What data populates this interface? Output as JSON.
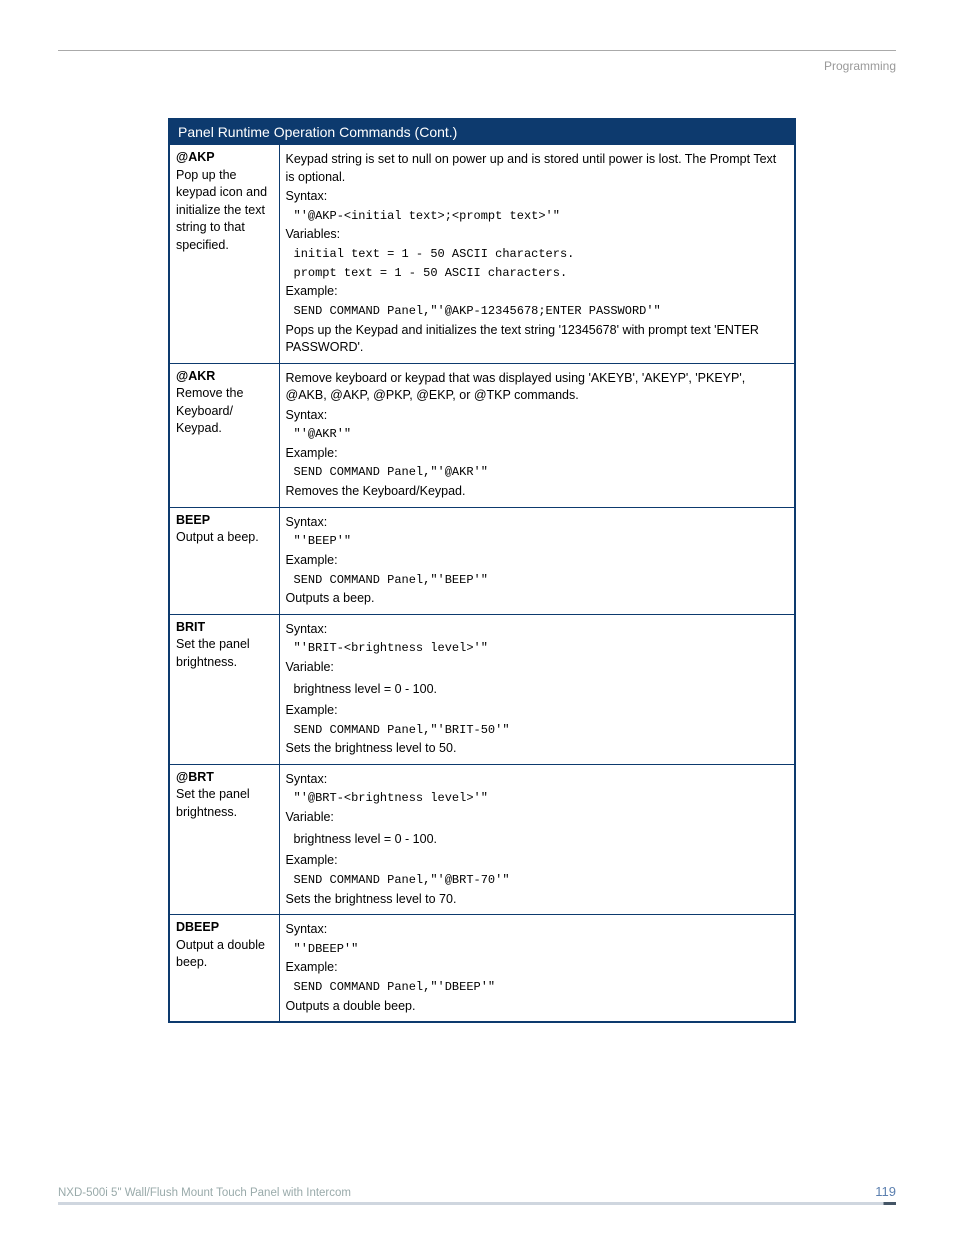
{
  "header": {
    "section": "Programming"
  },
  "table": {
    "title": "Panel Runtime Operation Commands (Cont.)",
    "rows": [
      {
        "cmd": "@AKP",
        "summary": "Pop up the keypad icon and initialize the text string to that specified.",
        "lines": [
          {
            "t": "text",
            "v": "Keypad string is set to null on power up and is stored until power is lost. The Prompt Text is optional."
          },
          {
            "t": "text",
            "v": "Syntax:"
          },
          {
            "t": "code",
            "v": "\"'@AKP-<initial text>;<prompt text>'\""
          },
          {
            "t": "text",
            "v": "Variables:"
          },
          {
            "t": "code",
            "v": "initial text = 1 - 50 ASCII characters."
          },
          {
            "t": "code",
            "v": "prompt text = 1 - 50 ASCII characters."
          },
          {
            "t": "text",
            "v": "Example:"
          },
          {
            "t": "code",
            "v": "SEND COMMAND Panel,\"'@AKP-12345678;ENTER PASSWORD'\""
          },
          {
            "t": "text",
            "v": "Pops up the Keypad and initializes the text string '12345678' with prompt text 'ENTER PASSWORD'."
          }
        ]
      },
      {
        "cmd": "@AKR",
        "summary": "Remove the Keyboard/ Keypad.",
        "lines": [
          {
            "t": "text",
            "v": "Remove keyboard or keypad that was displayed using 'AKEYB', 'AKEYP', 'PKEYP', @AKB, @AKP, @PKP, @EKP, or @TKP commands."
          },
          {
            "t": "text",
            "v": "Syntax:"
          },
          {
            "t": "code",
            "v": "\"'@AKR'\""
          },
          {
            "t": "text",
            "v": "Example:"
          },
          {
            "t": "code",
            "v": "SEND COMMAND Panel,\"'@AKR'\""
          },
          {
            "t": "text",
            "v": "Removes the Keyboard/Keypad."
          }
        ]
      },
      {
        "cmd": "BEEP",
        "summary": "Output a beep.",
        "lines": [
          {
            "t": "text",
            "v": "Syntax:"
          },
          {
            "t": "code",
            "v": "\"'BEEP'\""
          },
          {
            "t": "text",
            "v": "Example:"
          },
          {
            "t": "code",
            "v": "SEND COMMAND Panel,\"'BEEP'\""
          },
          {
            "t": "text",
            "v": "Outputs a beep."
          }
        ]
      },
      {
        "cmd": "BRIT",
        "summary": "Set the panel brightness.",
        "lines": [
          {
            "t": "text",
            "v": "Syntax:"
          },
          {
            "t": "code",
            "v": "\"'BRIT-<brightness level>'\""
          },
          {
            "t": "text",
            "v": "Variable:"
          },
          {
            "t": "code-sans",
            "v": "brightness level = 0 - 100."
          },
          {
            "t": "text",
            "v": "Example:"
          },
          {
            "t": "code",
            "v": "SEND COMMAND Panel,\"'BRIT-50'\""
          },
          {
            "t": "text",
            "v": "Sets the brightness level to 50."
          }
        ]
      },
      {
        "cmd": "@BRT",
        "summary": "Set the panel brightness.",
        "lines": [
          {
            "t": "text",
            "v": "Syntax:"
          },
          {
            "t": "code",
            "v": "\"'@BRT-<brightness level>'\""
          },
          {
            "t": "text",
            "v": "Variable:"
          },
          {
            "t": "code-sans",
            "v": "brightness level = 0 - 100."
          },
          {
            "t": "text",
            "v": "Example:"
          },
          {
            "t": "code",
            "v": "SEND COMMAND Panel,\"'@BRT-70'\""
          },
          {
            "t": "text",
            "v": "Sets the brightness level to 70."
          }
        ]
      },
      {
        "cmd": "DBEEP",
        "summary": "Output a double beep.",
        "lines": [
          {
            "t": "text",
            "v": "Syntax:"
          },
          {
            "t": "code",
            "v": "\"'DBEEP'\""
          },
          {
            "t": "text",
            "v": "Example:"
          },
          {
            "t": "code",
            "v": "SEND COMMAND Panel,\"'DBEEP'\""
          },
          {
            "t": "text",
            "v": "Outputs a double beep."
          }
        ]
      }
    ]
  },
  "footer": {
    "doc": "NXD-500i 5\" Wall/Flush Mount Touch Panel with Intercom",
    "page": "119"
  }
}
